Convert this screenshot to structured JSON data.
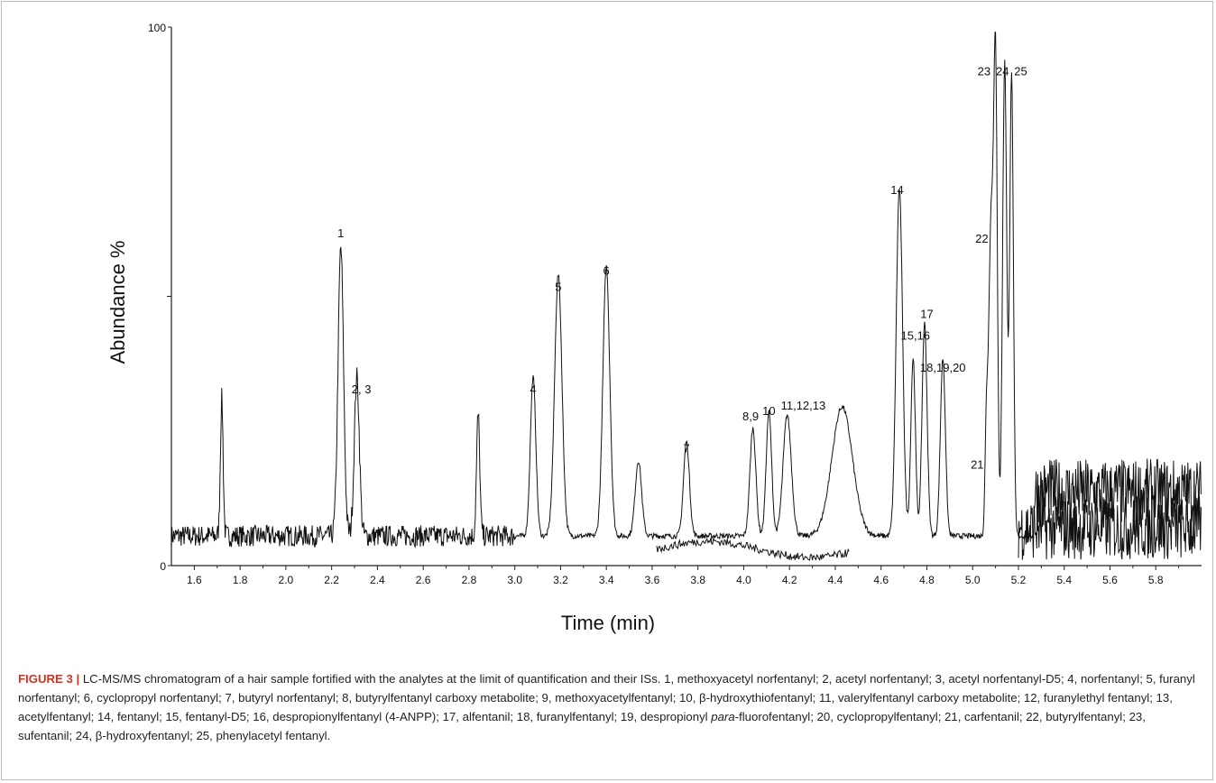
{
  "chart_data": {
    "type": "line",
    "title": "",
    "xlabel": "Time  (min)",
    "ylabel": "Abundance  %",
    "xlim": [
      1.5,
      6.0
    ],
    "ylim": [
      0,
      100
    ],
    "x_ticks": [
      "1.6",
      "1.8",
      "2.0",
      "2.2",
      "2.4",
      "2.6",
      "2.8",
      "3.0",
      "3.2",
      "3.4",
      "3.6",
      "3.8",
      "4.0",
      "4.2",
      "4.4",
      "4.6",
      "4.8",
      "5.0",
      "5.2",
      "5.4",
      "5.6",
      "5.8"
    ],
    "y_ticks": [
      "0",
      "100"
    ],
    "baseline": 5.5,
    "noise_amplitude": 2.0,
    "series": [
      {
        "values": [
          [
            1.72,
            25.5,
            0.006
          ],
          [
            2.24,
            53.5,
            0.012
          ],
          [
            2.31,
            29.5,
            0.011
          ],
          [
            2.84,
            22.5,
            0.007
          ],
          [
            3.08,
            29.5,
            0.012
          ],
          [
            3.19,
            48.5,
            0.016
          ],
          [
            3.4,
            50.0,
            0.015
          ],
          [
            3.54,
            14.0,
            0.014
          ],
          [
            3.75,
            17.5,
            0.013
          ],
          [
            4.04,
            20.0,
            0.013
          ],
          [
            4.11,
            23.0,
            0.012
          ],
          [
            4.19,
            22.5,
            0.018
          ],
          [
            4.43,
            24.0,
            0.045
          ],
          [
            4.68,
            64.5,
            0.014
          ],
          [
            4.74,
            33.0,
            0.01
          ],
          [
            4.79,
            39.5,
            0.011
          ],
          [
            4.87,
            33.0,
            0.011
          ],
          [
            5.06,
            18.5,
            0.006
          ],
          [
            5.08,
            57.5,
            0.01
          ],
          [
            5.1,
            85.5,
            0.008
          ],
          [
            5.14,
            88.0,
            0.009
          ],
          [
            5.17,
            86.0,
            0.008
          ]
        ]
      }
    ],
    "peak_labels": [
      {
        "text": "1",
        "x": 2.24,
        "y": 61
      },
      {
        "text": "2, 3",
        "x": 2.33,
        "y": 32
      },
      {
        "text": "4",
        "x": 3.08,
        "y": 32
      },
      {
        "text": "5",
        "x": 3.19,
        "y": 51
      },
      {
        "text": "6",
        "x": 3.4,
        "y": 54
      },
      {
        "text": "7",
        "x": 3.75,
        "y": 21
      },
      {
        "text": "8,9",
        "x": 4.03,
        "y": 27
      },
      {
        "text": "10",
        "x": 4.11,
        "y": 28
      },
      {
        "text": "11,12,13",
        "x": 4.26,
        "y": 29
      },
      {
        "text": "14",
        "x": 4.67,
        "y": 69
      },
      {
        "text": "22",
        "x": 5.04,
        "y": 60
      },
      {
        "text": "17",
        "x": 4.8,
        "y": 46
      },
      {
        "text": "15,16",
        "x": 4.75,
        "y": 42
      },
      {
        "text": "18,19,20",
        "x": 4.87,
        "y": 36
      },
      {
        "text": "21",
        "x": 5.02,
        "y": 18
      },
      {
        "text": "23",
        "x": 5.05,
        "y": 91
      },
      {
        "text": "24",
        "x": 5.13,
        "y": 91
      },
      {
        "text": "25",
        "x": 5.21,
        "y": 91
      }
    ]
  },
  "caption": {
    "label": "FIGURE 3 |",
    "text_before_italic": " LC-MS/MS chromatogram of a hair sample fortified with the analytes at the limit of quantification and their ISs. 1, methoxyacetyl norfentanyl; 2, acetyl norfentanyl; 3, acetyl norfentanyl-D5; 4, norfentanyl; 5, furanyl norfentanyl; 6, cyclopropyl norfentanyl; 7, butyryl norfentanyl; 8, butyrylfentanyl carboxy metabolite; 9, methoxyacetylfentanyl; 10, β-hydroxythiofentanyl; 11, valerylfentanyl carboxy metabolite; 12, furanylethyl fentanyl; 13, acetylfentanyl; 14, fentanyl; 15, fentanyl-D5; 16, despropionylfentanyl (4-ANPP); 17, alfentanil; 18, furanylfentanyl; 19, despropionyl ",
    "italic": "para",
    "text_after_italic": "-fluorofentanyl; 20, cyclopropylfentanyl; 21, carfentanil; 22, butyrylfentanyl; 23, sufentanil; 24, β-hydroxyfentanyl; 25, phenylacetyl fentanyl."
  }
}
